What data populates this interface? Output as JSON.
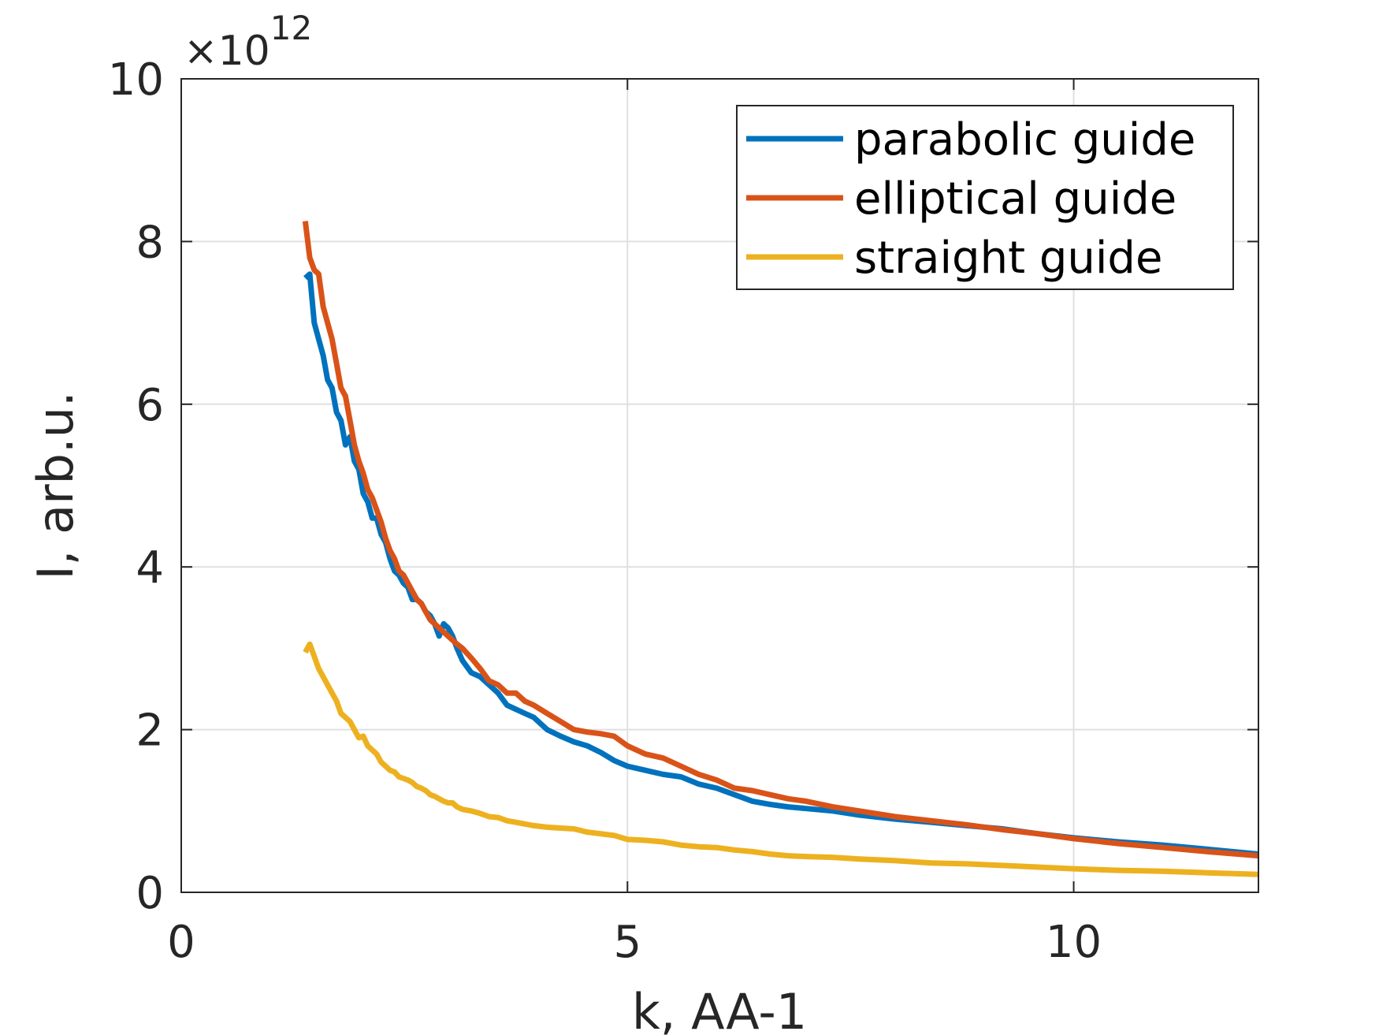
{
  "chart_data": {
    "type": "line",
    "xlabel": "k, AA-1",
    "ylabel": "I, arb.u.",
    "xlim": [
      0,
      12.07
    ],
    "ylim": [
      0,
      10
    ],
    "x_ticks": [
      0,
      5,
      10
    ],
    "x_tick_labels": [
      "0",
      "5",
      "10"
    ],
    "y_ticks": [
      0,
      2,
      4,
      6,
      8,
      10
    ],
    "y_tick_labels": [
      "0",
      "2",
      "4",
      "6",
      "8",
      "10"
    ],
    "y_multiplier": {
      "base": "×10",
      "exponent": "12"
    },
    "grid": true,
    "legend_position": "top-right",
    "colors": {
      "parabolic": "#0072BD",
      "elliptical": "#D95319",
      "straight": "#EDB120",
      "axis": "#262626",
      "grid": "#e0e0e0"
    },
    "series": [
      {
        "name": "parabolic guide",
        "color": "#0072BD",
        "x": [
          1.39,
          1.44,
          1.49,
          1.54,
          1.59,
          1.64,
          1.69,
          1.74,
          1.79,
          1.84,
          1.89,
          1.94,
          1.99,
          2.04,
          2.09,
          2.14,
          2.19,
          2.24,
          2.29,
          2.34,
          2.39,
          2.44,
          2.49,
          2.54,
          2.59,
          2.64,
          2.69,
          2.74,
          2.79,
          2.84,
          2.89,
          2.94,
          2.99,
          3.04,
          3.09,
          3.15,
          3.25,
          3.35,
          3.45,
          3.55,
          3.65,
          3.75,
          3.85,
          3.95,
          4.1,
          4.25,
          4.4,
          4.55,
          4.7,
          4.85,
          5.0,
          5.2,
          5.4,
          5.6,
          5.8,
          6.0,
          6.2,
          6.4,
          6.6,
          6.8,
          7.0,
          7.3,
          7.6,
          8.0,
          8.4,
          8.8,
          9.2,
          9.6,
          10.0,
          10.5,
          11.0,
          11.5,
          12.07
        ],
        "y": [
          7.55,
          7.6,
          7.0,
          6.8,
          6.6,
          6.3,
          6.2,
          5.9,
          5.8,
          5.5,
          5.6,
          5.3,
          5.2,
          4.9,
          4.8,
          4.6,
          4.6,
          4.4,
          4.3,
          4.1,
          3.95,
          3.9,
          3.8,
          3.75,
          3.6,
          3.6,
          3.55,
          3.45,
          3.4,
          3.3,
          3.15,
          3.3,
          3.25,
          3.15,
          3.0,
          2.85,
          2.7,
          2.65,
          2.55,
          2.45,
          2.3,
          2.25,
          2.2,
          2.15,
          2.0,
          1.92,
          1.85,
          1.8,
          1.72,
          1.62,
          1.55,
          1.5,
          1.45,
          1.42,
          1.33,
          1.28,
          1.2,
          1.12,
          1.08,
          1.05,
          1.03,
          1.0,
          0.95,
          0.9,
          0.86,
          0.82,
          0.78,
          0.72,
          0.67,
          0.62,
          0.58,
          0.53,
          0.47
        ]
      },
      {
        "name": "elliptical guide",
        "color": "#D95319",
        "x": [
          1.39,
          1.44,
          1.49,
          1.54,
          1.59,
          1.64,
          1.69,
          1.74,
          1.79,
          1.84,
          1.89,
          1.94,
          1.99,
          2.04,
          2.09,
          2.14,
          2.19,
          2.24,
          2.29,
          2.34,
          2.39,
          2.44,
          2.49,
          2.54,
          2.59,
          2.64,
          2.69,
          2.74,
          2.79,
          2.84,
          2.89,
          2.94,
          2.99,
          3.04,
          3.09,
          3.15,
          3.25,
          3.35,
          3.45,
          3.55,
          3.65,
          3.75,
          3.85,
          3.95,
          4.1,
          4.25,
          4.4,
          4.55,
          4.7,
          4.85,
          5.0,
          5.2,
          5.4,
          5.6,
          5.8,
          6.0,
          6.2,
          6.4,
          6.6,
          6.8,
          7.0,
          7.3,
          7.6,
          8.0,
          8.4,
          8.8,
          9.2,
          9.6,
          10.0,
          10.5,
          11.0,
          11.5,
          12.07
        ],
        "y": [
          8.25,
          7.8,
          7.65,
          7.6,
          7.2,
          7.0,
          6.8,
          6.5,
          6.2,
          6.1,
          5.8,
          5.5,
          5.3,
          5.15,
          4.95,
          4.85,
          4.7,
          4.55,
          4.35,
          4.2,
          4.1,
          3.95,
          3.9,
          3.8,
          3.7,
          3.6,
          3.55,
          3.45,
          3.35,
          3.3,
          3.25,
          3.2,
          3.15,
          3.1,
          3.05,
          3.0,
          2.88,
          2.75,
          2.6,
          2.55,
          2.45,
          2.45,
          2.35,
          2.3,
          2.2,
          2.1,
          2.0,
          1.97,
          1.95,
          1.92,
          1.8,
          1.7,
          1.65,
          1.55,
          1.45,
          1.38,
          1.28,
          1.25,
          1.2,
          1.15,
          1.12,
          1.05,
          1.0,
          0.93,
          0.88,
          0.83,
          0.77,
          0.72,
          0.66,
          0.6,
          0.55,
          0.5,
          0.45
        ]
      },
      {
        "name": "straight guide",
        "color": "#EDB120",
        "x": [
          1.39,
          1.44,
          1.49,
          1.54,
          1.59,
          1.64,
          1.69,
          1.74,
          1.79,
          1.84,
          1.89,
          1.94,
          1.99,
          2.04,
          2.09,
          2.14,
          2.19,
          2.24,
          2.29,
          2.34,
          2.39,
          2.44,
          2.49,
          2.54,
          2.59,
          2.64,
          2.69,
          2.74,
          2.79,
          2.84,
          2.89,
          2.94,
          2.99,
          3.04,
          3.09,
          3.15,
          3.25,
          3.35,
          3.45,
          3.55,
          3.65,
          3.75,
          3.85,
          3.95,
          4.1,
          4.25,
          4.4,
          4.55,
          4.7,
          4.85,
          5.0,
          5.2,
          5.4,
          5.6,
          5.8,
          6.0,
          6.2,
          6.4,
          6.6,
          6.8,
          7.0,
          7.3,
          7.6,
          8.0,
          8.4,
          8.8,
          9.2,
          9.6,
          10.0,
          10.5,
          11.0,
          11.5,
          12.07
        ],
        "y": [
          2.95,
          3.05,
          2.9,
          2.75,
          2.65,
          2.55,
          2.45,
          2.35,
          2.2,
          2.15,
          2.1,
          2.0,
          1.9,
          1.92,
          1.8,
          1.75,
          1.7,
          1.6,
          1.55,
          1.5,
          1.48,
          1.42,
          1.4,
          1.38,
          1.35,
          1.3,
          1.28,
          1.25,
          1.2,
          1.18,
          1.15,
          1.12,
          1.1,
          1.1,
          1.05,
          1.02,
          1.0,
          0.97,
          0.93,
          0.92,
          0.88,
          0.86,
          0.84,
          0.82,
          0.8,
          0.79,
          0.78,
          0.74,
          0.72,
          0.7,
          0.65,
          0.64,
          0.62,
          0.58,
          0.56,
          0.55,
          0.52,
          0.5,
          0.47,
          0.45,
          0.44,
          0.43,
          0.41,
          0.39,
          0.36,
          0.35,
          0.33,
          0.31,
          0.29,
          0.27,
          0.26,
          0.24,
          0.22
        ]
      }
    ]
  }
}
